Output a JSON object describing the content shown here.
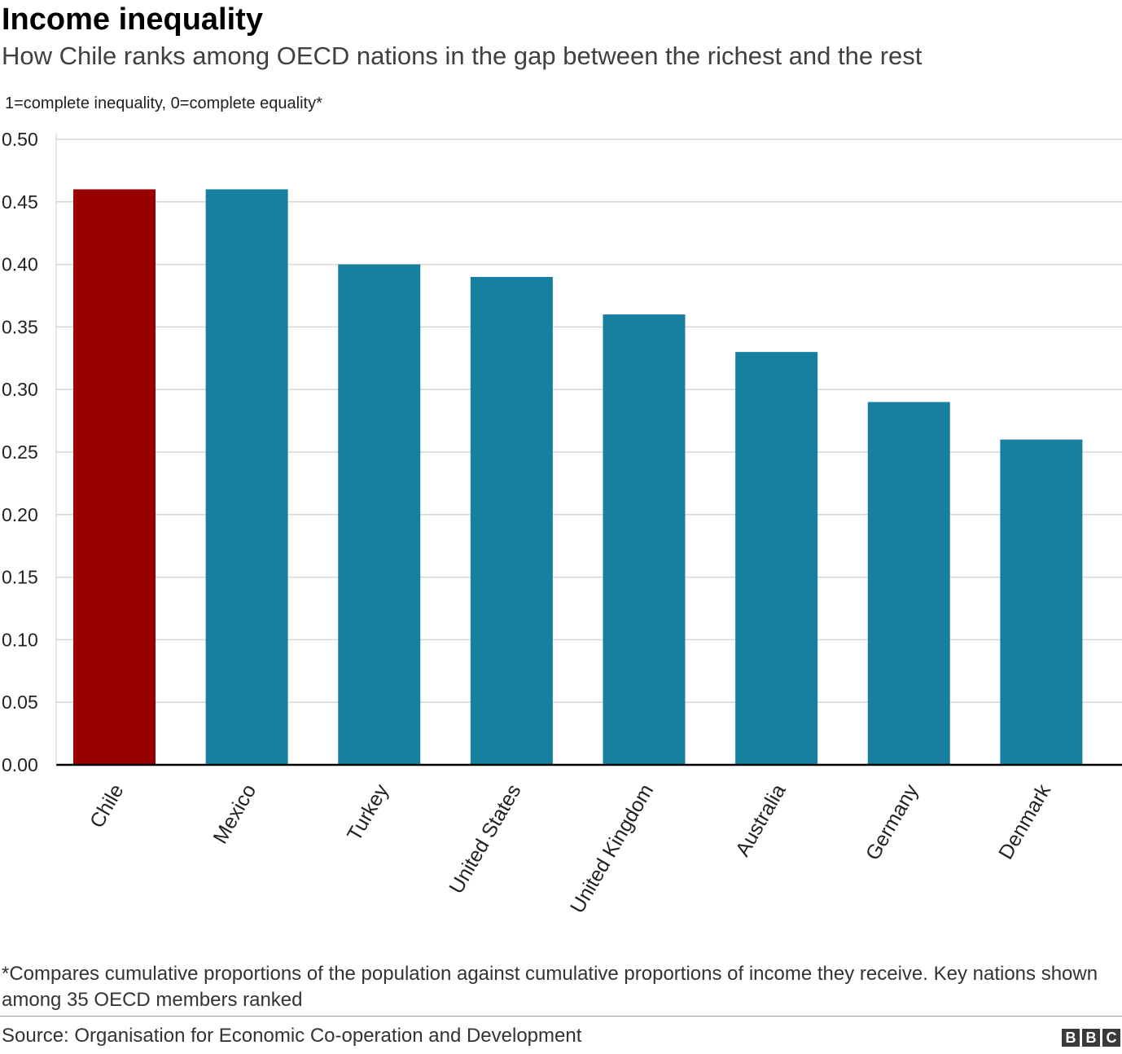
{
  "header": {
    "title": "Income inequality",
    "subtitle": "How Chile ranks among OECD nations in the gap between the richest and the rest"
  },
  "unit_note": "1=complete inequality, 0=complete equality*",
  "chart_data": {
    "type": "bar",
    "title": "Income inequality",
    "subtitle": "How Chile ranks among OECD nations in the gap between the richest and the rest",
    "xlabel": "",
    "ylabel": "",
    "categories": [
      "Chile",
      "Mexico",
      "Turkey",
      "United States",
      "United Kingdom",
      "Australia",
      "Germany",
      "Denmark"
    ],
    "values": [
      0.46,
      0.46,
      0.4,
      0.39,
      0.36,
      0.33,
      0.29,
      0.26
    ],
    "ylim": [
      0,
      0.5
    ],
    "yticks": [
      "0.00",
      "0.05",
      "0.10",
      "0.15",
      "0.20",
      "0.25",
      "0.30",
      "0.35",
      "0.40",
      "0.45",
      "0.50"
    ],
    "grid": true,
    "colors": {
      "highlight": "#990000",
      "default": "#1780a1"
    },
    "highlight_category": "Chile"
  },
  "footnote": "*Compares cumulative proportions of the population against cumulative proportions of income they receive. Key nations shown among 35 OECD members ranked",
  "source": "Source: Organisation for Economic Co-operation and Development",
  "logo": {
    "letters": [
      "B",
      "B",
      "C"
    ]
  }
}
